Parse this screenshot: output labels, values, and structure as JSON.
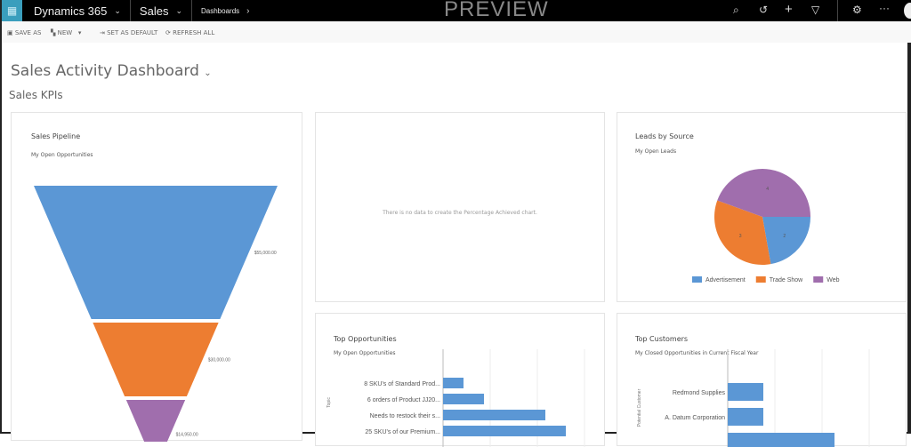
{
  "topbar": {
    "app": "Dynamics 365",
    "module": "Sales",
    "breadcrumb": "Dashboards",
    "watermark": "PREVIEW",
    "icons": [
      "search-icon",
      "history-icon",
      "plus-icon",
      "filter-icon",
      "gear-icon",
      "more-icon",
      "avatar"
    ]
  },
  "toolbar": {
    "save_as": "SAVE AS",
    "new": "NEW",
    "set_default": "SET AS DEFAULT",
    "refresh": "REFRESH ALL"
  },
  "page": {
    "title": "Sales Activity Dashboard",
    "section": "Sales KPIs"
  },
  "colors": {
    "blue": "#5b97d5",
    "orange": "#ed7d31",
    "purple": "#a06ead"
  },
  "cards": {
    "pipeline": {
      "title": "Sales Pipeline",
      "subtitle": "My Open Opportunities"
    },
    "percent": {
      "message": "There is no data to create the Percentage Achieved chart."
    },
    "leads": {
      "title": "Leads by Source",
      "subtitle": "My Open Leads"
    },
    "topopp": {
      "title": "Top Opportunities",
      "subtitle": "My Open Opportunities"
    },
    "topcust": {
      "title": "Top Customers",
      "subtitle": "My Closed Opportunities in Current Fiscal Year"
    }
  },
  "chart_data": [
    {
      "type": "funnel",
      "labels": [
        "$55,000.00",
        "$30,000.00",
        "$14,950.00"
      ],
      "values": [
        55000,
        30000,
        14950
      ]
    },
    {
      "type": "pie",
      "categories": [
        "Advertisement",
        "Trade Show",
        "Web"
      ],
      "values": [
        2,
        3,
        4
      ],
      "legend": "bottom"
    },
    {
      "type": "bar",
      "orientation": "horizontal",
      "ylabel": "Topic",
      "categories": [
        "8 SKU's of Standard Prod...",
        "6 orders of Product JJ20...",
        "Needs to restock their s...",
        "25 SKU's of our Premium..."
      ],
      "values": [
        1,
        2,
        5,
        6
      ]
    },
    {
      "type": "bar",
      "orientation": "horizontal",
      "ylabel": "Potential Customer",
      "categories": [
        "Redmond Supplies",
        "A. Datum Corporation",
        ""
      ],
      "values": [
        1,
        1,
        3
      ]
    }
  ]
}
